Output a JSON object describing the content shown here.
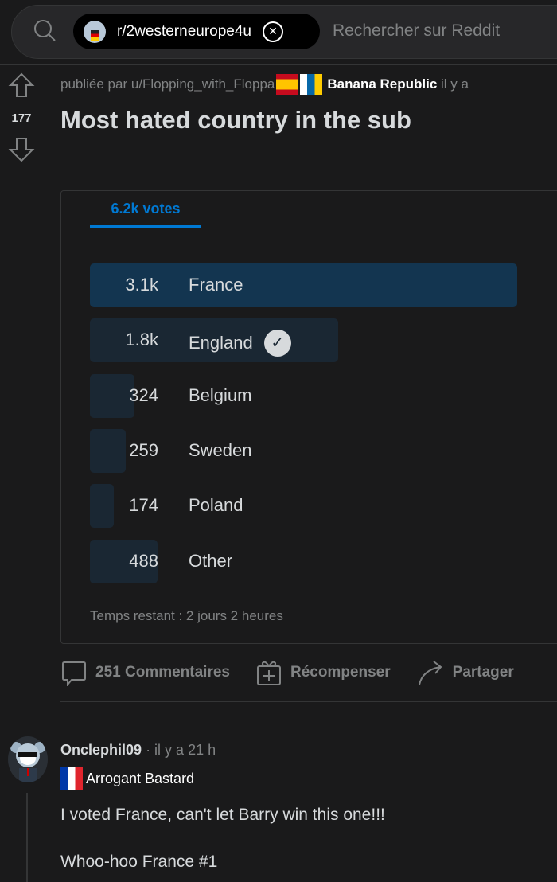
{
  "search": {
    "subreddit": "r/2westerneurope4u",
    "placeholder": "Rechercher sur Reddit"
  },
  "post": {
    "score": "177",
    "posted_by_prefix": "publiée par",
    "author": "u/Flopping_with_Floppa",
    "author_flair": "Banana Republic",
    "time_prefix": "il y a",
    "title": "Most hated country in the sub"
  },
  "poll": {
    "tab_label": "6.2k votes",
    "options": [
      {
        "count": "3.1k",
        "value": 3100,
        "label": "France",
        "leading": true,
        "user_voted": false
      },
      {
        "count": "1.8k",
        "value": 1800,
        "label": "England",
        "leading": false,
        "user_voted": true
      },
      {
        "count": "324",
        "value": 324,
        "label": "Belgium",
        "leading": false,
        "user_voted": false
      },
      {
        "count": "259",
        "value": 259,
        "label": "Sweden",
        "leading": false,
        "user_voted": false
      },
      {
        "count": "174",
        "value": 174,
        "label": "Poland",
        "leading": false,
        "user_voted": false
      },
      {
        "count": "488",
        "value": 488,
        "label": "Other",
        "leading": false,
        "user_voted": false
      }
    ],
    "time_remaining": "Temps restant : 2 jours 2 heures"
  },
  "actions": {
    "comments": "251 Commentaires",
    "award": "Récompenser",
    "share": "Partager"
  },
  "comment": {
    "author": "Onclephil09",
    "time": "· il y a 21 h",
    "flair": "Arrogant Bastard",
    "lines": [
      "I voted France, can't let Barry win this one!!!",
      "Whoo-hoo France #1"
    ]
  },
  "colors": {
    "accent": "#0079d3",
    "leading_bar": "#133550",
    "bar": "#1a2733",
    "background": "#1a1a1b"
  }
}
